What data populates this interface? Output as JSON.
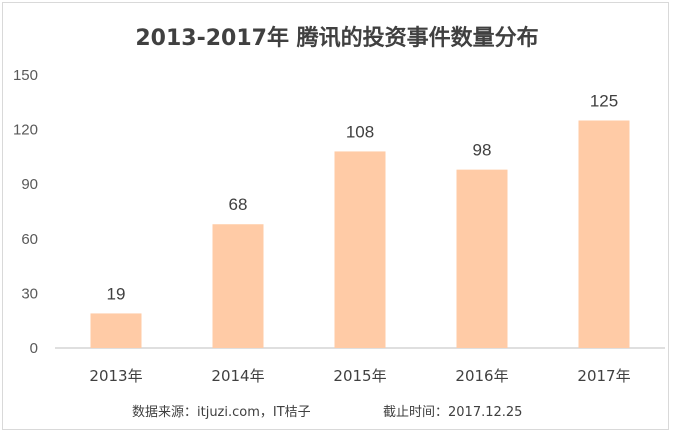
{
  "chart_data": {
    "type": "bar",
    "title": "2013-2017年 腾讯的投资事件数量分布",
    "categories": [
      "2013年",
      "2014年",
      "2015年",
      "2016年",
      "2017年"
    ],
    "values": [
      19,
      68,
      108,
      98,
      125
    ],
    "data_labels": [
      "19",
      "68",
      "108",
      "98",
      "125"
    ],
    "ylim": [
      0,
      150
    ],
    "yticks": [
      "0",
      "30",
      "60",
      "90",
      "120",
      "150"
    ],
    "xlabel": "",
    "ylabel": "",
    "grid": false,
    "bar_color": "#FFCBA6",
    "source_text": "数据来源：itjuzi.com，IT桔子",
    "cutoff_text": "截止时间：2017.12.25"
  }
}
